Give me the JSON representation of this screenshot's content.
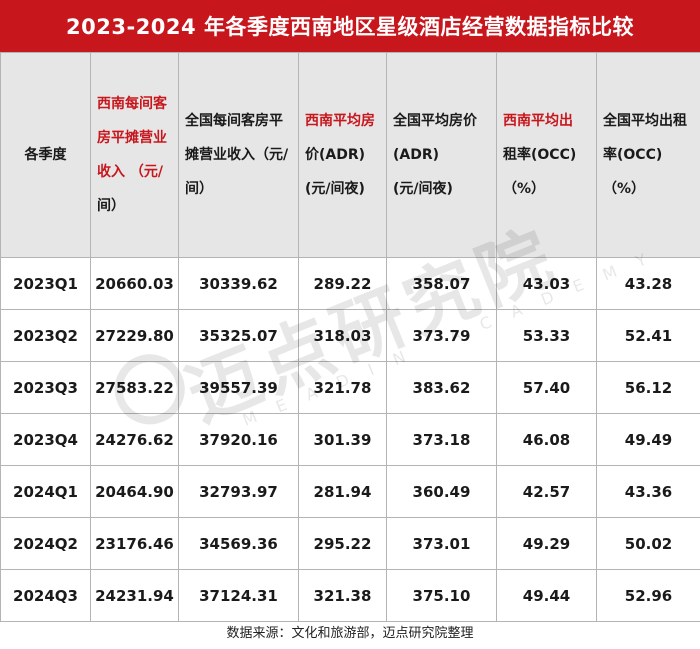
{
  "title": "2023-2024 年各季度西南地区星级酒店经营数据指标比较",
  "headers": [
    {
      "lines": [
        "各季度"
      ],
      "red": false,
      "red_lines": 0
    },
    {
      "lines": [
        "西南每间客",
        "房平摊营业",
        "收入 （元/",
        "间）"
      ],
      "red": true,
      "red_lines": 3
    },
    {
      "lines": [
        "全国每间客房平",
        "摊营业收入（元/",
        "间）"
      ],
      "red": false,
      "red_lines": 0
    },
    {
      "lines": [
        "西南平均房",
        "价(ADR)",
        "(元/间夜)"
      ],
      "red": true,
      "red_lines": 1
    },
    {
      "lines": [
        "全国平均房价",
        "(ADR)",
        "(元/间夜)"
      ],
      "red": false,
      "red_lines": 0
    },
    {
      "lines": [
        "西南平均出",
        "租率(OCC)",
        "（%）"
      ],
      "red": true,
      "red_lines": 1
    },
    {
      "lines": [
        "全国平均出租",
        "率(OCC)（%）"
      ],
      "red": false,
      "red_lines": 0
    }
  ],
  "rows": [
    [
      "2023Q1",
      "20660.03",
      "30339.62",
      "289.22",
      "358.07",
      "43.03",
      "43.28"
    ],
    [
      "2023Q2",
      "27229.80",
      "35325.07",
      "318.03",
      "373.79",
      "53.33",
      "52.41"
    ],
    [
      "2023Q3",
      "27583.22",
      "39557.39",
      "321.78",
      "383.62",
      "57.40",
      "56.12"
    ],
    [
      "2023Q4",
      "24276.62",
      "37920.16",
      "301.39",
      "373.18",
      "46.08",
      "49.49"
    ],
    [
      "2024Q1",
      "20464.90",
      "32793.97",
      "281.94",
      "360.49",
      "42.57",
      "43.36"
    ],
    [
      "2024Q2",
      "23176.46",
      "34569.36",
      "295.22",
      "373.01",
      "49.29",
      "50.02"
    ],
    [
      "2024Q3",
      "24231.94",
      "37124.31",
      "321.38",
      "375.10",
      "49.44",
      "52.96"
    ]
  ],
  "footer": "数据来源：文化和旅游部，迈点研究院整理",
  "watermark": {
    "main": "迈点研究院",
    "sub": "MEADIN ACADEMY"
  },
  "colors": {
    "accent": "#c8161d",
    "header_bg": "#e6e6e6",
    "border": "#b4b4b4"
  }
}
